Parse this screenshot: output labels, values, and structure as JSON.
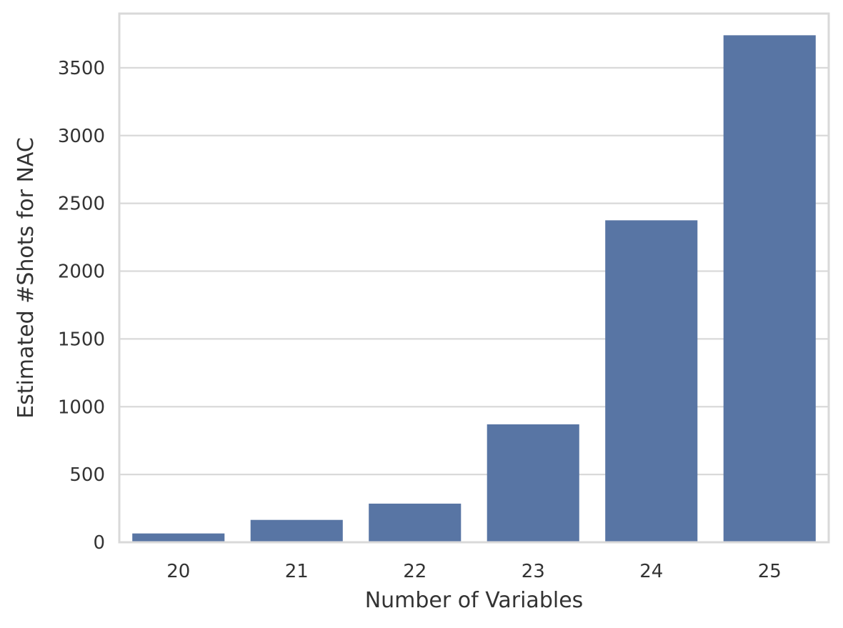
{
  "chart_data": {
    "type": "bar",
    "xlabel": "Number of Variables",
    "ylabel": "Estimated #Shots for NAC",
    "categories": [
      "20",
      "21",
      "22",
      "23",
      "24",
      "25"
    ],
    "values": [
      65,
      165,
      285,
      870,
      2375,
      3740
    ],
    "ylim": [
      0,
      3900
    ],
    "yticks": [
      0,
      500,
      1000,
      1500,
      2000,
      2500,
      3000,
      3500
    ],
    "grid": true,
    "bar_color": "#5875a4",
    "grid_color": "#d9d9d9",
    "axes_color": "#d9d9d9"
  }
}
